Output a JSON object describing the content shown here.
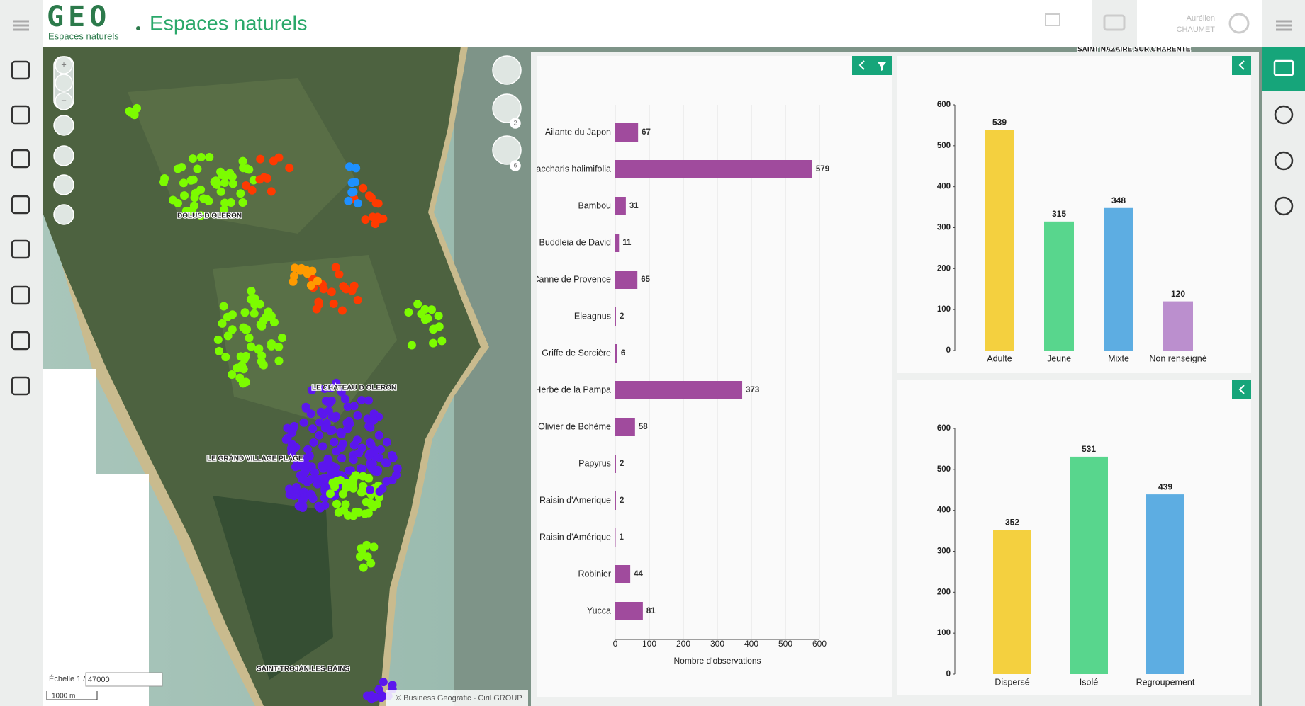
{
  "header": {
    "logo": "GEO",
    "logo_subtitle": "Espaces naturels",
    "title": "Espaces naturels",
    "user_first": "Aurélien",
    "user_last": "CHAUMET"
  },
  "map": {
    "labels": [
      "DOLUS-D OLERON",
      "LE CHATEAU D OLERON",
      "LE GRAND VILLAGE PLAGE",
      "SAINT-TROJAN-LES-BAINS",
      "SAINT NAZAIRE SUR CHARENTE"
    ],
    "zoom_in": "+",
    "zoom_out": "−",
    "badges": [
      "2",
      "6"
    ],
    "scale_label": "Échelle 1 /",
    "scale_value": "47000",
    "scale_bar": "1000 m",
    "attribution": "© Business Geografic - Ciril GROUP"
  },
  "chart_data": [
    {
      "type": "hbar",
      "categories": [
        "Ailante du Japon",
        "Baccharis halimifolia",
        "Bambou",
        "Buddleia de David",
        "Canne de Provence",
        "Eleagnus",
        "Griffe de Sorcière",
        "Herbe de la Pampa",
        "Olivier de Bohème",
        "Papyrus",
        "Raisin d'Amerique",
        "Raisin d'Amérique",
        "Robinier",
        "Yucca"
      ],
      "values": [
        67,
        579,
        31,
        11,
        65,
        2,
        6,
        373,
        58,
        2,
        2,
        1,
        44,
        81
      ],
      "color": "#a04b9d",
      "xlim": [
        0,
        600
      ],
      "xticks": [
        0,
        100,
        200,
        300,
        400,
        500,
        600
      ],
      "xlabel": "Nombre d'observations",
      "grid": true
    },
    {
      "type": "bar",
      "categories": [
        "Adulte",
        "Jeune",
        "Mixte",
        "Non renseigné"
      ],
      "values": [
        539,
        315,
        348,
        120
      ],
      "colors": [
        "#f4d03f",
        "#58d68d",
        "#5dade2",
        "#bb8fce"
      ],
      "ylim": [
        0,
        600
      ],
      "yticks": [
        0,
        100,
        200,
        300,
        400,
        500,
        600
      ]
    },
    {
      "type": "bar",
      "categories": [
        "Dispersé",
        "Isolé",
        "Regroupement"
      ],
      "values": [
        352,
        531,
        439
      ],
      "colors": [
        "#f4d03f",
        "#58d68d",
        "#5dade2"
      ],
      "ylim": [
        0,
        600
      ],
      "yticks": [
        0,
        100,
        200,
        300,
        400,
        500,
        600
      ]
    }
  ]
}
